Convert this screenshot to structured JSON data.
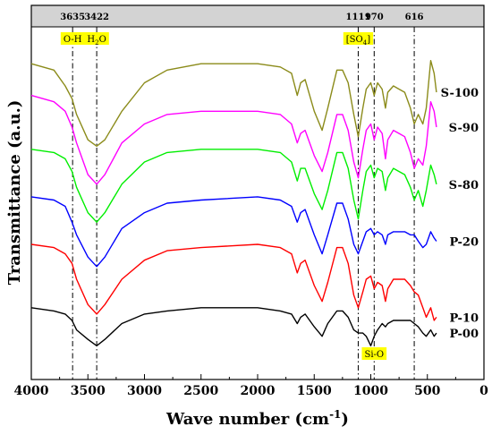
{
  "chart_data": {
    "type": "line",
    "title": "",
    "xlabel": "Wave number (cm",
    "xlabel_sup": "-1",
    "xlabel_close": ")",
    "ylabel": "Transmittance (a.u.)",
    "xlim": [
      4000,
      0
    ],
    "x_ticks": [
      4000,
      3500,
      3000,
      2500,
      2000,
      1500,
      1000,
      500,
      0
    ],
    "x_tick_labels": [
      "4000",
      "3500",
      "3000",
      "2500",
      "2000",
      "1500",
      "1000",
      "500",
      "0"
    ],
    "ylim": [
      0,
      100
    ],
    "reference_lines": [
      {
        "x": 3635,
        "label": "3635"
      },
      {
        "x": 3422,
        "label": "3422"
      },
      {
        "x": 1111,
        "label": "1111"
      },
      {
        "x": 970,
        "label": "970"
      },
      {
        "x": 616,
        "label": "616"
      }
    ],
    "band_labels": [
      {
        "x": 3635,
        "text": "O-H"
      },
      {
        "x": 3422,
        "text": "H",
        "sub": "2",
        "tail": "O"
      },
      {
        "x": 1111,
        "text": "[SO",
        "sub": "4",
        "tail": "]"
      },
      {
        "x": 970,
        "text": "Si-O"
      }
    ],
    "series": [
      {
        "name": "S-100",
        "color": "#8b8b1a",
        "points": [
          [
            4000,
            94
          ],
          [
            3800,
            92
          ],
          [
            3700,
            87
          ],
          [
            3640,
            83
          ],
          [
            3600,
            78
          ],
          [
            3500,
            70
          ],
          [
            3422,
            68
          ],
          [
            3350,
            70
          ],
          [
            3200,
            79
          ],
          [
            3000,
            88
          ],
          [
            2800,
            92
          ],
          [
            2500,
            94
          ],
          [
            2000,
            94
          ],
          [
            1800,
            93
          ],
          [
            1700,
            91
          ],
          [
            1650,
            84
          ],
          [
            1620,
            88
          ],
          [
            1580,
            89
          ],
          [
            1500,
            79
          ],
          [
            1430,
            73
          ],
          [
            1380,
            80
          ],
          [
            1300,
            92
          ],
          [
            1250,
            92
          ],
          [
            1200,
            88
          ],
          [
            1150,
            78
          ],
          [
            1111,
            71
          ],
          [
            1070,
            80
          ],
          [
            1040,
            86
          ],
          [
            1000,
            88
          ],
          [
            970,
            84
          ],
          [
            940,
            88
          ],
          [
            900,
            86
          ],
          [
            870,
            80
          ],
          [
            850,
            85
          ],
          [
            800,
            87
          ],
          [
            750,
            86
          ],
          [
            700,
            85
          ],
          [
            650,
            80
          ],
          [
            616,
            75
          ],
          [
            580,
            78
          ],
          [
            540,
            75
          ],
          [
            510,
            80
          ],
          [
            470,
            95
          ],
          [
            440,
            91
          ],
          [
            420,
            85
          ]
        ]
      },
      {
        "name": "S-90",
        "color": "#ff00ff",
        "points": [
          [
            4000,
            84
          ],
          [
            3800,
            82
          ],
          [
            3700,
            79
          ],
          [
            3640,
            74
          ],
          [
            3600,
            69
          ],
          [
            3500,
            59
          ],
          [
            3422,
            56
          ],
          [
            3350,
            59
          ],
          [
            3200,
            69
          ],
          [
            3000,
            75
          ],
          [
            2800,
            78
          ],
          [
            2500,
            79
          ],
          [
            2000,
            79
          ],
          [
            1800,
            78
          ],
          [
            1700,
            75
          ],
          [
            1650,
            69
          ],
          [
            1620,
            72
          ],
          [
            1580,
            73
          ],
          [
            1500,
            65
          ],
          [
            1430,
            60
          ],
          [
            1380,
            66
          ],
          [
            1300,
            78
          ],
          [
            1250,
            78
          ],
          [
            1200,
            73
          ],
          [
            1150,
            63
          ],
          [
            1111,
            58
          ],
          [
            1070,
            67
          ],
          [
            1040,
            73
          ],
          [
            1000,
            75
          ],
          [
            970,
            70
          ],
          [
            940,
            74
          ],
          [
            900,
            72
          ],
          [
            870,
            64
          ],
          [
            850,
            70
          ],
          [
            800,
            73
          ],
          [
            750,
            72
          ],
          [
            700,
            71
          ],
          [
            650,
            66
          ],
          [
            616,
            61
          ],
          [
            580,
            64
          ],
          [
            540,
            62
          ],
          [
            510,
            68
          ],
          [
            470,
            82
          ],
          [
            440,
            79
          ],
          [
            420,
            74
          ]
        ]
      },
      {
        "name": "S-80",
        "color": "#00ee00",
        "points": [
          [
            4000,
            67
          ],
          [
            3800,
            66
          ],
          [
            3700,
            64
          ],
          [
            3640,
            60
          ],
          [
            3600,
            55
          ],
          [
            3500,
            47
          ],
          [
            3422,
            44
          ],
          [
            3350,
            47
          ],
          [
            3200,
            56
          ],
          [
            3000,
            63
          ],
          [
            2800,
            66
          ],
          [
            2500,
            67
          ],
          [
            2000,
            67
          ],
          [
            1800,
            66
          ],
          [
            1700,
            63
          ],
          [
            1650,
            57
          ],
          [
            1620,
            61
          ],
          [
            1580,
            61
          ],
          [
            1500,
            53
          ],
          [
            1430,
            48
          ],
          [
            1380,
            54
          ],
          [
            1300,
            66
          ],
          [
            1250,
            66
          ],
          [
            1200,
            61
          ],
          [
            1150,
            51
          ],
          [
            1111,
            45
          ],
          [
            1070,
            54
          ],
          [
            1040,
            60
          ],
          [
            1000,
            62
          ],
          [
            970,
            58
          ],
          [
            940,
            61
          ],
          [
            900,
            60
          ],
          [
            870,
            54
          ],
          [
            850,
            58
          ],
          [
            800,
            61
          ],
          [
            750,
            60
          ],
          [
            700,
            59
          ],
          [
            650,
            55
          ],
          [
            616,
            51
          ],
          [
            580,
            54
          ],
          [
            540,
            49
          ],
          [
            510,
            54
          ],
          [
            470,
            62
          ],
          [
            440,
            59
          ],
          [
            420,
            56
          ]
        ]
      },
      {
        "name": "P-20",
        "color": "#0000ff",
        "points": [
          [
            4000,
            52
          ],
          [
            3800,
            51
          ],
          [
            3700,
            49
          ],
          [
            3640,
            44
          ],
          [
            3600,
            40
          ],
          [
            3500,
            33
          ],
          [
            3422,
            30
          ],
          [
            3350,
            33
          ],
          [
            3200,
            42
          ],
          [
            3000,
            47
          ],
          [
            2800,
            50
          ],
          [
            2500,
            51
          ],
          [
            2000,
            52
          ],
          [
            1800,
            51
          ],
          [
            1700,
            49
          ],
          [
            1650,
            44
          ],
          [
            1620,
            47
          ],
          [
            1580,
            48
          ],
          [
            1500,
            40
          ],
          [
            1430,
            34
          ],
          [
            1380,
            40
          ],
          [
            1300,
            50
          ],
          [
            1250,
            50
          ],
          [
            1200,
            45
          ],
          [
            1150,
            37
          ],
          [
            1111,
            34
          ],
          [
            1070,
            38
          ],
          [
            1040,
            41
          ],
          [
            1000,
            42
          ],
          [
            970,
            40
          ],
          [
            940,
            41
          ],
          [
            900,
            40
          ],
          [
            870,
            37
          ],
          [
            850,
            40
          ],
          [
            800,
            41
          ],
          [
            750,
            41
          ],
          [
            700,
            41
          ],
          [
            650,
            40
          ],
          [
            616,
            40
          ],
          [
            580,
            38
          ],
          [
            540,
            36
          ],
          [
            510,
            37
          ],
          [
            470,
            41
          ],
          [
            440,
            39
          ],
          [
            420,
            38
          ]
        ]
      },
      {
        "name": "P-10",
        "color": "#ff0000",
        "points": [
          [
            4000,
            37
          ],
          [
            3800,
            36
          ],
          [
            3700,
            34
          ],
          [
            3640,
            31
          ],
          [
            3600,
            26
          ],
          [
            3500,
            18
          ],
          [
            3422,
            15
          ],
          [
            3350,
            18
          ],
          [
            3200,
            26
          ],
          [
            3000,
            32
          ],
          [
            2800,
            35
          ],
          [
            2500,
            36
          ],
          [
            2000,
            37
          ],
          [
            1800,
            36
          ],
          [
            1700,
            34
          ],
          [
            1650,
            28
          ],
          [
            1620,
            31
          ],
          [
            1580,
            32
          ],
          [
            1500,
            24
          ],
          [
            1430,
            19
          ],
          [
            1380,
            25
          ],
          [
            1300,
            36
          ],
          [
            1250,
            36
          ],
          [
            1200,
            31
          ],
          [
            1150,
            21
          ],
          [
            1111,
            17
          ],
          [
            1070,
            22
          ],
          [
            1040,
            26
          ],
          [
            1000,
            27
          ],
          [
            970,
            23
          ],
          [
            940,
            25
          ],
          [
            900,
            24
          ],
          [
            870,
            19
          ],
          [
            850,
            23
          ],
          [
            800,
            26
          ],
          [
            750,
            26
          ],
          [
            700,
            26
          ],
          [
            650,
            24
          ],
          [
            616,
            22
          ],
          [
            580,
            21
          ],
          [
            540,
            17
          ],
          [
            510,
            14
          ],
          [
            470,
            17
          ],
          [
            440,
            13
          ],
          [
            420,
            14
          ]
        ]
      },
      {
        "name": "P-00",
        "color": "#000000",
        "points": [
          [
            4000,
            17
          ],
          [
            3800,
            16
          ],
          [
            3700,
            15
          ],
          [
            3640,
            13
          ],
          [
            3600,
            10
          ],
          [
            3500,
            7
          ],
          [
            3422,
            5
          ],
          [
            3350,
            7
          ],
          [
            3200,
            12
          ],
          [
            3000,
            15
          ],
          [
            2800,
            16
          ],
          [
            2500,
            17
          ],
          [
            2000,
            17
          ],
          [
            1800,
            16
          ],
          [
            1700,
            15
          ],
          [
            1650,
            12
          ],
          [
            1620,
            14
          ],
          [
            1580,
            15
          ],
          [
            1500,
            11
          ],
          [
            1430,
            8
          ],
          [
            1380,
            12
          ],
          [
            1300,
            16
          ],
          [
            1250,
            16
          ],
          [
            1200,
            14
          ],
          [
            1150,
            10
          ],
          [
            1111,
            9
          ],
          [
            1070,
            9
          ],
          [
            1040,
            8
          ],
          [
            1000,
            5
          ],
          [
            970,
            8
          ],
          [
            940,
            10
          ],
          [
            900,
            12
          ],
          [
            870,
            11
          ],
          [
            850,
            12
          ],
          [
            800,
            13
          ],
          [
            750,
            13
          ],
          [
            700,
            13
          ],
          [
            650,
            13
          ],
          [
            616,
            12
          ],
          [
            580,
            11
          ],
          [
            540,
            9
          ],
          [
            510,
            8
          ],
          [
            470,
            10
          ],
          [
            440,
            8
          ],
          [
            420,
            9
          ]
        ]
      }
    ]
  }
}
